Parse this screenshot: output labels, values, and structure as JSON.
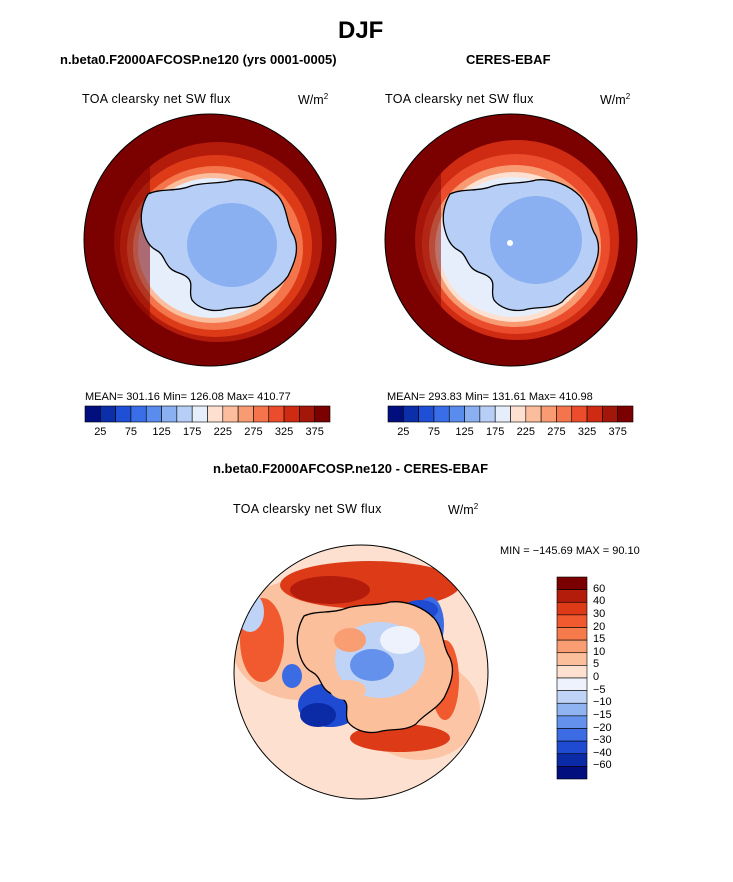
{
  "figure": {
    "season": "DJF",
    "difference_title": "n.beta0.F2000AFCOSP.ne120 - CERES-EBAF"
  },
  "panels": {
    "model": {
      "title": "n.beta0.F2000AFCOSP.ne120 (yrs 0001-0005)",
      "variable": "TOA clearsky net SW flux",
      "unit": "W/m",
      "unit_exp": "2",
      "stats": "MEAN= 301.16   Min= 126.08   Max= 410.77"
    },
    "obs": {
      "title": "CERES-EBAF",
      "variable": "TOA clearsky net SW flux",
      "unit": "W/m",
      "unit_exp": "2",
      "stats": "MEAN= 293.83   Min= 131.61   Max= 410.98"
    },
    "diff": {
      "variable": "TOA clearsky net SW flux",
      "unit": "W/m",
      "unit_exp": "2",
      "stats": "MIN = −145.69  MAX =  90.10"
    }
  },
  "colors": {
    "abs_levels": [
      "#000e7e",
      "#0a2fa8",
      "#1e4fd4",
      "#3a6ee8",
      "#5a8cee",
      "#8ab0f2",
      "#b7cff7",
      "#e6eefc",
      "#fde0cf",
      "#fbbd9b",
      "#f89a72",
      "#f4754c",
      "#ea4c2c",
      "#cf2a12",
      "#a3160a",
      "#7b0000"
    ],
    "diff_levels": [
      "#7b0000",
      "#b31b0b",
      "#dd3a18",
      "#f05a2e",
      "#f67b4b",
      "#f99d73",
      "#fbbf9b",
      "#fde0cf",
      "#edf2fc",
      "#bed3f6",
      "#90b3f1",
      "#6491ec",
      "#3c6ce3",
      "#1e4bd2",
      "#0a2aa6",
      "#000e7e"
    ]
  },
  "chart_data": [
    {
      "type": "heatmap",
      "projection": "south polar stereographic",
      "title": "n.beta0.F2000AFCOSP.ne120 (yrs 0001-0005)",
      "variable": "TOA clearsky net SW flux",
      "units": "W/m^2",
      "mean": 301.16,
      "min": 126.08,
      "max": 410.77,
      "colorbar_ticks": [
        "25",
        "75",
        "125",
        "175",
        "225",
        "275",
        "325",
        "375"
      ]
    },
    {
      "type": "heatmap",
      "projection": "south polar stereographic",
      "title": "CERES-EBAF",
      "variable": "TOA clearsky net SW flux",
      "units": "W/m^2",
      "mean": 293.83,
      "min": 131.61,
      "max": 410.98,
      "colorbar_ticks": [
        "25",
        "75",
        "125",
        "175",
        "225",
        "275",
        "325",
        "375"
      ]
    },
    {
      "type": "heatmap",
      "projection": "south polar stereographic",
      "title": "n.beta0.F2000AFCOSP.ne120 - CERES-EBAF",
      "variable": "TOA clearsky net SW flux",
      "units": "W/m^2",
      "min": -145.69,
      "max": 90.1,
      "colorbar_labels": [
        "60",
        "40",
        "30",
        "20",
        "15",
        "10",
        "5",
        "0",
        "−5",
        "−10",
        "−15",
        "−20",
        "−30",
        "−40",
        "−60"
      ]
    }
  ]
}
